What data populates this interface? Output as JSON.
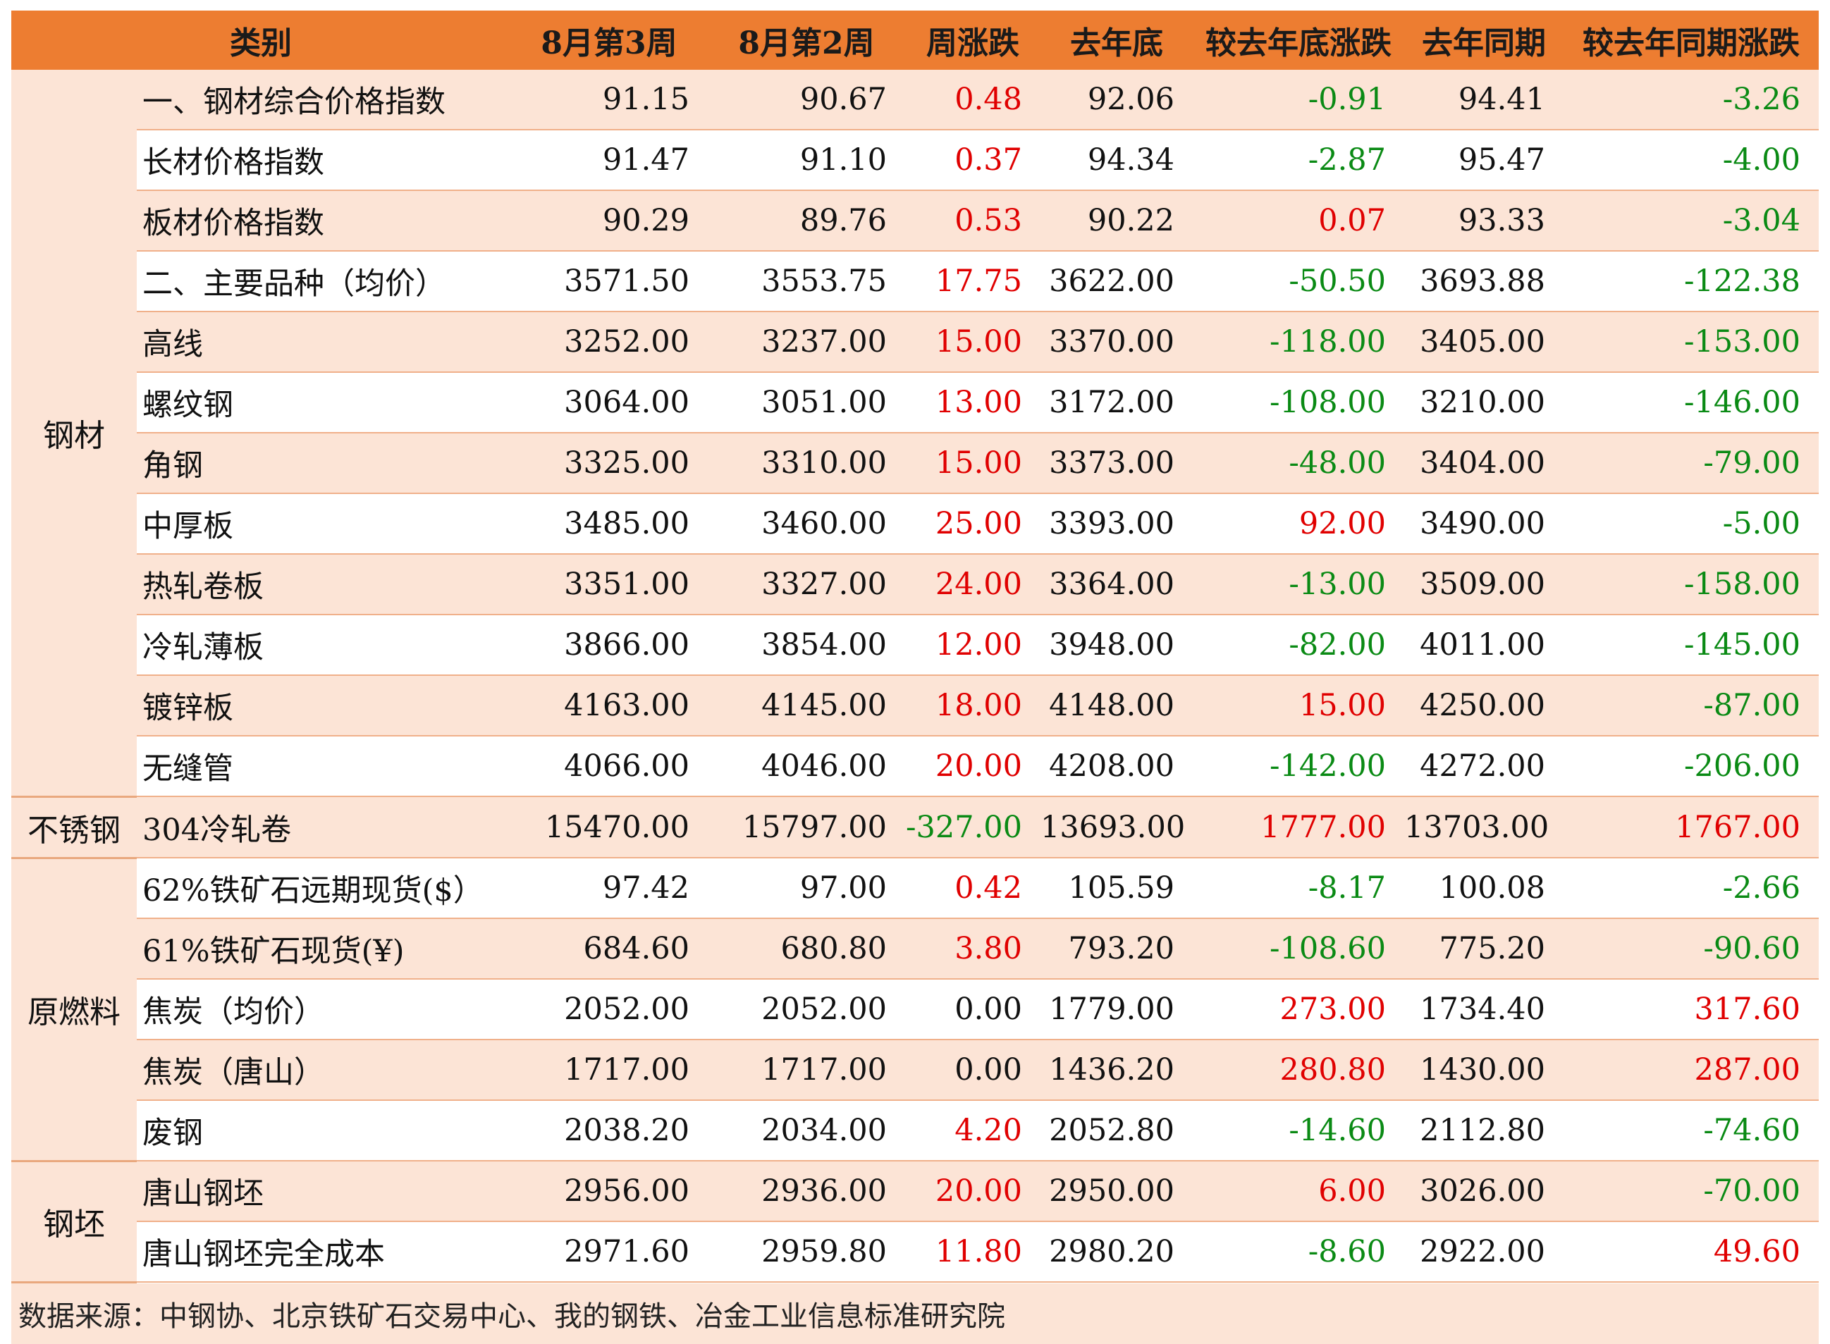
{
  "headers": [
    "类别",
    "8月第3周",
    "8月第2周",
    "周涨跌",
    "去年底",
    "较去年底涨跌",
    "去年同期",
    "较去年同期涨跌"
  ],
  "groups": [
    {
      "category": "钢材",
      "rows": [
        {
          "name": "一、钢材综合价格指数",
          "values": [
            "91.15",
            "90.67",
            "0.48",
            "92.06",
            "-0.91",
            "94.41",
            "-3.26"
          ]
        },
        {
          "name": "长材价格指数",
          "values": [
            "91.47",
            "91.10",
            "0.37",
            "94.34",
            "-2.87",
            "95.47",
            "-4.00"
          ]
        },
        {
          "name": "板材价格指数",
          "values": [
            "90.29",
            "89.76",
            "0.53",
            "90.22",
            "0.07",
            "93.33",
            "-3.04"
          ]
        },
        {
          "name": "二、主要品种（均价）",
          "values": [
            "3571.50",
            "3553.75",
            "17.75",
            "3622.00",
            "-50.50",
            "3693.88",
            "-122.38"
          ]
        },
        {
          "name": "高线",
          "values": [
            "3252.00",
            "3237.00",
            "15.00",
            "3370.00",
            "-118.00",
            "3405.00",
            "-153.00"
          ]
        },
        {
          "name": "螺纹钢",
          "values": [
            "3064.00",
            "3051.00",
            "13.00",
            "3172.00",
            "-108.00",
            "3210.00",
            "-146.00"
          ]
        },
        {
          "name": "角钢",
          "values": [
            "3325.00",
            "3310.00",
            "15.00",
            "3373.00",
            "-48.00",
            "3404.00",
            "-79.00"
          ]
        },
        {
          "name": "中厚板",
          "values": [
            "3485.00",
            "3460.00",
            "25.00",
            "3393.00",
            "92.00",
            "3490.00",
            "-5.00"
          ]
        },
        {
          "name": "热轧卷板",
          "values": [
            "3351.00",
            "3327.00",
            "24.00",
            "3364.00",
            "-13.00",
            "3509.00",
            "-158.00"
          ]
        },
        {
          "name": "冷轧薄板",
          "values": [
            "3866.00",
            "3854.00",
            "12.00",
            "3948.00",
            "-82.00",
            "4011.00",
            "-145.00"
          ]
        },
        {
          "name": "镀锌板",
          "values": [
            "4163.00",
            "4145.00",
            "18.00",
            "4148.00",
            "15.00",
            "4250.00",
            "-87.00"
          ]
        },
        {
          "name": "无缝管",
          "values": [
            "4066.00",
            "4046.00",
            "20.00",
            "4208.00",
            "-142.00",
            "4272.00",
            "-206.00"
          ]
        }
      ]
    },
    {
      "category": "不锈钢",
      "rows": [
        {
          "name": "304冷轧卷",
          "values": [
            "15470.00",
            "15797.00",
            "-327.00",
            "13693.00",
            "1777.00",
            "13703.00",
            "1767.00"
          ]
        }
      ]
    },
    {
      "category": "原燃料",
      "rows": [
        {
          "name": "62%铁矿石远期现货($）",
          "values": [
            "97.42",
            "97.00",
            "0.42",
            "105.59",
            "-8.17",
            "100.08",
            "-2.66"
          ]
        },
        {
          "name": "61%铁矿石现货(¥)",
          "values": [
            "684.60",
            "680.80",
            "3.80",
            "793.20",
            "-108.60",
            "775.20",
            "-90.60"
          ]
        },
        {
          "name": "焦炭（均价）",
          "values": [
            "2052.00",
            "2052.00",
            "0.00",
            "1779.00",
            "273.00",
            "1734.40",
            "317.60"
          ]
        },
        {
          "name": "焦炭（唐山）",
          "values": [
            "1717.00",
            "1717.00",
            "0.00",
            "1436.20",
            "280.80",
            "1430.00",
            "287.00"
          ]
        },
        {
          "name": "废钢",
          "values": [
            "2038.20",
            "2034.00",
            "4.20",
            "2052.80",
            "-14.60",
            "2112.80",
            "-74.60"
          ]
        }
      ]
    },
    {
      "category": "钢坯",
      "rows": [
        {
          "name": "唐山钢坯",
          "values": [
            "2956.00",
            "2936.00",
            "20.00",
            "2950.00",
            "6.00",
            "3026.00",
            "-70.00"
          ]
        },
        {
          "name": "唐山钢坯完全成本",
          "values": [
            "2971.60",
            "2959.80",
            "11.80",
            "2980.20",
            "-8.60",
            "2922.00",
            "49.60"
          ]
        }
      ]
    }
  ],
  "source_note": "数据来源：中钢协、北京铁矿石交易中心、我的钢铁、冶金工业信息标准研究院",
  "colors": {
    "header": "#ed7d31",
    "band": "#fce4d6",
    "up": "#e00000",
    "down": "#0a8a14"
  }
}
